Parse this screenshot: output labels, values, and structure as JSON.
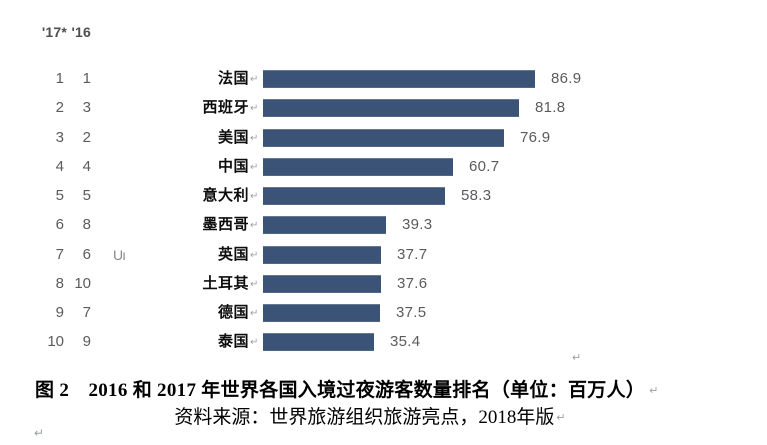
{
  "document": {
    "caption": "图 2　2016 和 2017 年世界各国入境过夜游客数量排名（单位：百万人）",
    "source_line": "资料来源：世界旅游组织旅游亮点，2018年版",
    "line_break_mark": "↵"
  },
  "chart_data": {
    "type": "bar",
    "orientation": "horizontal",
    "title": "2016 和 2017 年世界各国入境过夜游客数量排名",
    "unit_label": "百万人",
    "rank_headers": {
      "y2017": "'17*",
      "y2016": "'16"
    },
    "categories": [
      "法国",
      "西班牙",
      "美国",
      "中国",
      "意大利",
      "墨西哥",
      "英国",
      "土耳其",
      "德国",
      "泰国"
    ],
    "values": [
      86.9,
      81.8,
      76.9,
      60.7,
      58.3,
      39.3,
      37.7,
      37.6,
      37.5,
      35.4
    ],
    "value_labels": [
      "86.9",
      "81.8",
      "76.9",
      "60.7",
      "58.3",
      "39.3",
      "37.7",
      "37.6",
      "37.5",
      "35.4"
    ],
    "rank_2017": [
      "1",
      "2",
      "3",
      "4",
      "5",
      "6",
      "7",
      "8",
      "9",
      "10"
    ],
    "rank_2016": [
      "1",
      "3",
      "2",
      "4",
      "5",
      "8",
      "6",
      "10",
      "7",
      "9"
    ],
    "xlim": [
      0,
      100
    ],
    "grid": false,
    "legend": "none",
    "bar_color": "#3b5377",
    "number_text_color": "#595b5e",
    "background_artifact": {
      "row_index": 6,
      "text": "Uı"
    }
  }
}
